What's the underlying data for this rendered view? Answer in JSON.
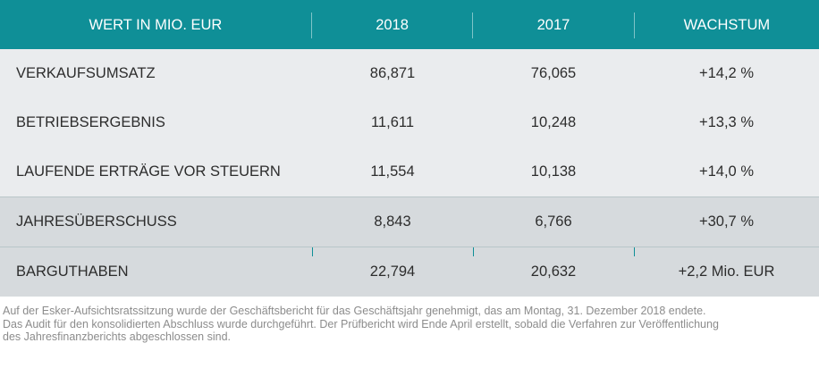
{
  "table": {
    "headers": [
      "WERT IN MIO. EUR",
      "2018",
      "2017",
      "WACHSTUM"
    ],
    "rows": [
      {
        "label": "VERKAUFSUMSATZ",
        "v2018": "86,871",
        "v2017": "76,065",
        "growth": "+14,2 %"
      },
      {
        "label": "BETRIEBSERGEBNIS",
        "v2018": "11,611",
        "v2017": "10,248",
        "growth": "+13,3 %"
      },
      {
        "label": "LAUFENDE ERTRÄGE VOR STEUERN",
        "v2018": "11,554",
        "v2017": "10,138",
        "growth": "+14,0 %"
      },
      {
        "label": "JAHRESÜBERSCHUSS",
        "v2018": "8,843",
        "v2017": "6,766",
        "growth": "+30,7 %"
      },
      {
        "label": "BARGUTHABEN",
        "v2018": "22,794",
        "v2017": "20,632",
        "growth": "+2,2 Mio. EUR"
      }
    ]
  },
  "footnote": {
    "line1": "Auf der Esker-Aufsichtsratssitzung wurde der Geschäftsbericht für das Geschäftsjahr genehmigt, das am Montag, 31. Dezember 2018 endete.",
    "line2": "Das Audit für den konsolidierten Abschluss wurde durchgeführt. Der Prüfbericht wird Ende April erstellt, sobald die Verfahren zur Veröffentlichung",
    "line3": "des Jahresfinanzberichts abgeschlossen sind."
  },
  "colors": {
    "header_bg": "#0f8f97",
    "row_light": "#eaecee",
    "row_dark": "#d6dadd",
    "note_text": "#8c8c8c"
  }
}
